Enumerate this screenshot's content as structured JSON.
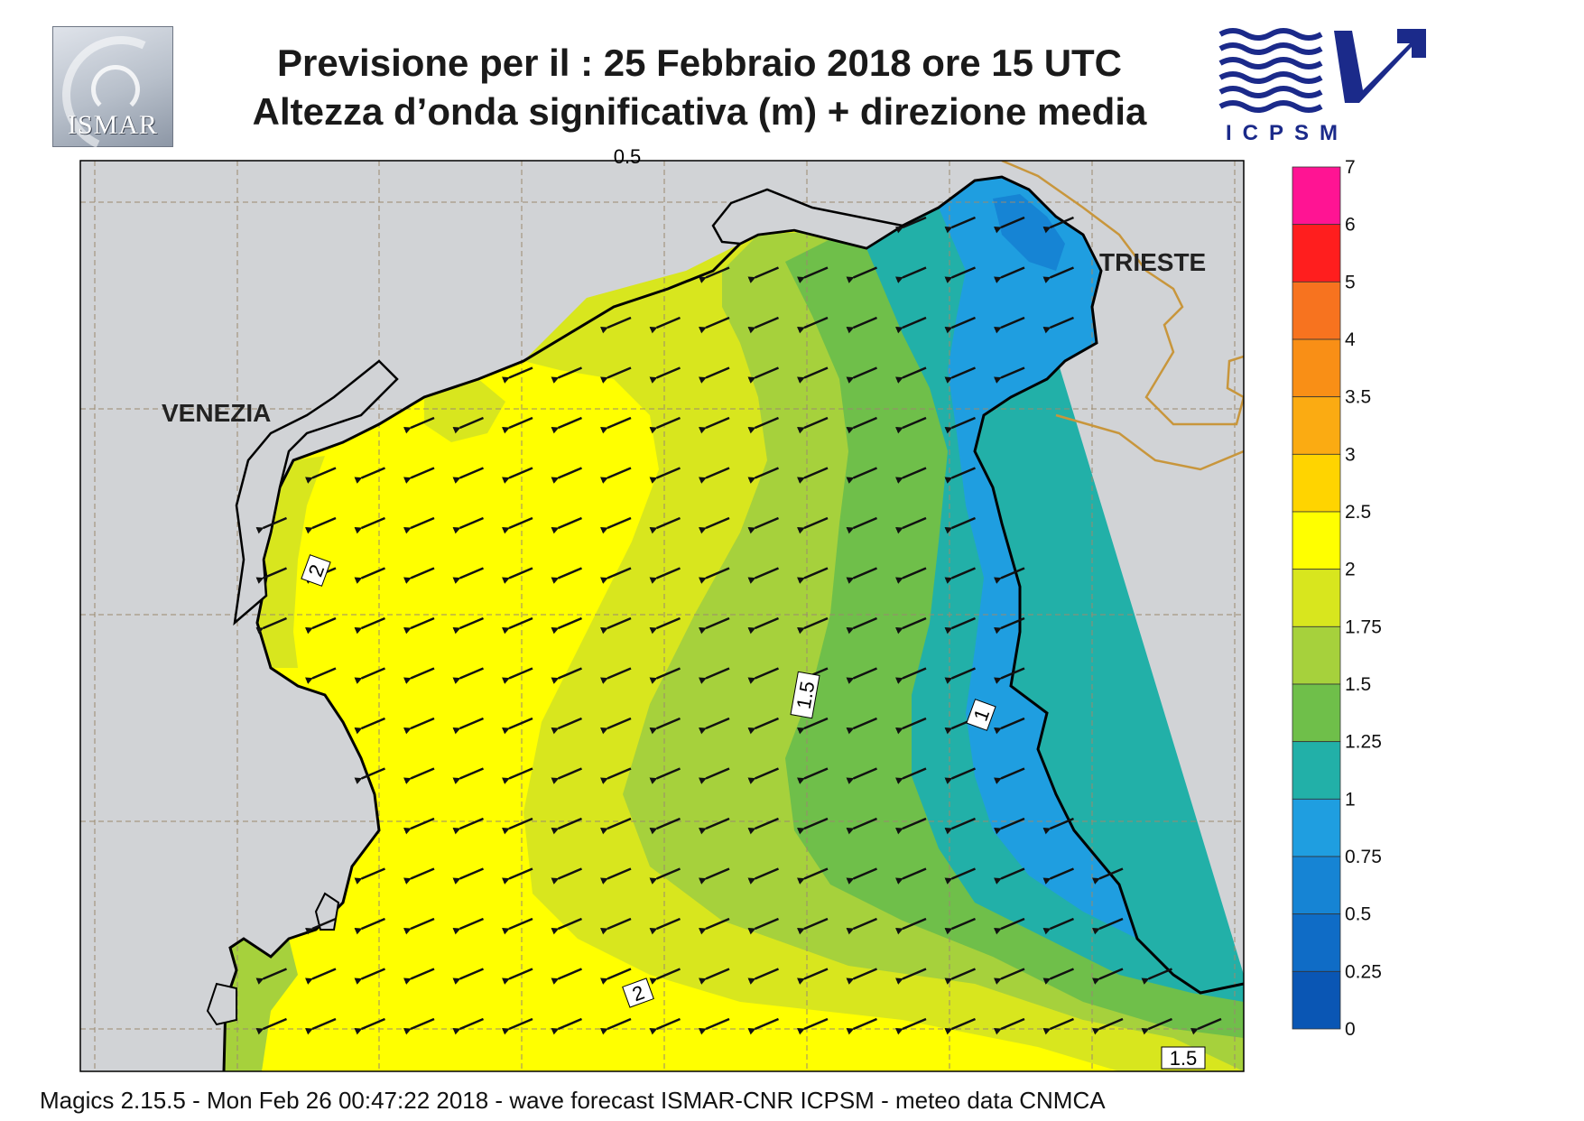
{
  "header": {
    "title_line1": "Previsione per il  :  25  Febbraio 2018   ore 15 UTC",
    "title_line2": "Altezza d’onda significativa (m) + direzione media"
  },
  "logos": {
    "left": {
      "text": "ISMAR",
      "icon": "ismar-logo-icon"
    },
    "right": {
      "text": "ICPSM",
      "icon": "icpsm-waves-arrow-icon",
      "color": "#1b2a8a"
    }
  },
  "map": {
    "cities": [
      "VENEZIA",
      "TRIESTE"
    ],
    "contour_labels": [
      "0.5",
      "2",
      "1.5",
      "1",
      "2",
      "1.5"
    ],
    "land_color": "#d1d3d6",
    "coast_color": "#000000",
    "border_color": "#c8963c",
    "arrow_direction": "south-west"
  },
  "colorbar": {
    "levels": [
      "7",
      "6",
      "5",
      "4",
      "3.5",
      "3",
      "2.5",
      "2",
      "1.75",
      "1.5",
      "1.25",
      "1",
      "0.75",
      "0.5",
      "0.25",
      "0"
    ],
    "colors": [
      "#ff1493",
      "#ff1e1e",
      "#f7731f",
      "#f98f16",
      "#fbab12",
      "#ffd400",
      "#ffff00",
      "#d8e61e",
      "#a6d13c",
      "#6fbf4a",
      "#22b0a8",
      "#1f9ee0",
      "#1684d4",
      "#0f6cc6",
      "#0a56b4"
    ]
  },
  "footer": {
    "text": "Magics 2.15.5 - Mon Feb 26 00:47:22 2018 - wave forecast  ISMAR-CNR  ICPSM - meteo data   CNMCA"
  }
}
